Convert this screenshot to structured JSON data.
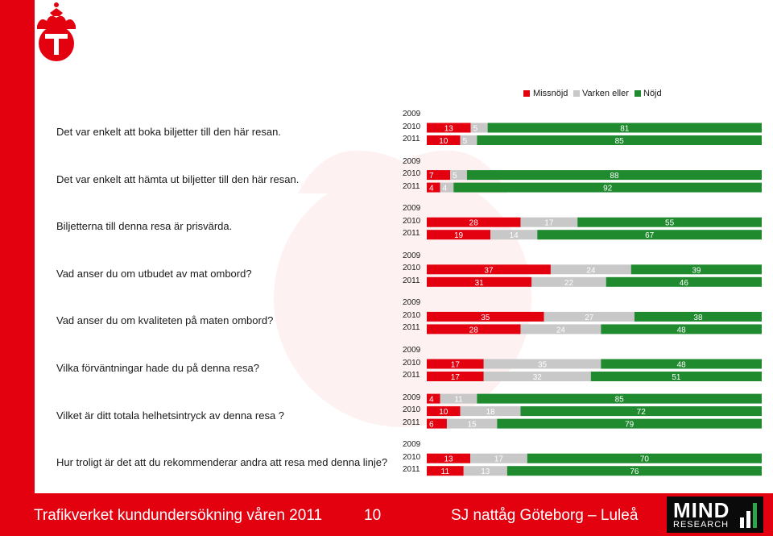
{
  "colors": {
    "brand_red": "#e3000f",
    "missnojd": "#e3000f",
    "varken": "#c8c8c8",
    "nojd": "#1f8a2e",
    "text": "#1a1a1a"
  },
  "icons": {
    "logo": "trafikverket-crown-logo-icon",
    "mind_signal": "signal-bars-icon"
  },
  "footer": {
    "left": "Trafikverket kundundersökning våren 2011",
    "page": "10",
    "right": "SJ nattåg Göteborg – Luleå",
    "logo_line1": "MIND",
    "logo_line2": "RESEARCH"
  },
  "chart_data": {
    "type": "bar",
    "orientation": "horizontal-stacked-percent",
    "legend": {
      "placement": "top-right",
      "entries": [
        "Missnöjd",
        "Varken eller",
        "Nöjd"
      ]
    },
    "questions": [
      {
        "label": "Det var enkelt att boka biljetter till den här resan.",
        "years": [
          {
            "year": "2009",
            "values": null
          },
          {
            "year": "2010",
            "values": [
              13,
              5,
              81
            ]
          },
          {
            "year": "2011",
            "values": [
              10,
              5,
              85
            ]
          }
        ]
      },
      {
        "label": "Det var enkelt att hämta ut biljetter till den här resan.",
        "years": [
          {
            "year": "2009",
            "values": null
          },
          {
            "year": "2010",
            "values": [
              7,
              5,
              88
            ]
          },
          {
            "year": "2011",
            "values": [
              4,
              4,
              92
            ]
          }
        ]
      },
      {
        "label": "Biljetterna till denna resa är prisvärda.",
        "years": [
          {
            "year": "2009",
            "values": null
          },
          {
            "year": "2010",
            "values": [
              28,
              17,
              55
            ]
          },
          {
            "year": "2011",
            "values": [
              19,
              14,
              67
            ]
          }
        ]
      },
      {
        "label": "Vad anser du om utbudet av mat ombord?",
        "years": [
          {
            "year": "2009",
            "values": null
          },
          {
            "year": "2010",
            "values": [
              37,
              24,
              39
            ]
          },
          {
            "year": "2011",
            "values": [
              31,
              22,
              46
            ]
          }
        ]
      },
      {
        "label": "Vad anser du om kvaliteten på maten ombord?",
        "years": [
          {
            "year": "2009",
            "values": null
          },
          {
            "year": "2010",
            "values": [
              35,
              27,
              38
            ]
          },
          {
            "year": "2011",
            "values": [
              28,
              24,
              48
            ]
          }
        ]
      },
      {
        "label": "Vilka förväntningar hade du på denna resa?",
        "years": [
          {
            "year": "2009",
            "values": null
          },
          {
            "year": "2010",
            "values": [
              17,
              35,
              48
            ]
          },
          {
            "year": "2011",
            "values": [
              17,
              32,
              51
            ]
          }
        ]
      },
      {
        "label": "Vilket är ditt totala helhetsintryck av denna resa ?",
        "years": [
          {
            "year": "2009",
            "values": [
              4,
              11,
              85
            ]
          },
          {
            "year": "2010",
            "values": [
              10,
              18,
              72
            ]
          },
          {
            "year": "2011",
            "values": [
              6,
              15,
              79
            ]
          }
        ]
      },
      {
        "label": "Hur troligt är det att du rekommenderar andra att resa med denna linje?",
        "years": [
          {
            "year": "2009",
            "values": null
          },
          {
            "year": "2010",
            "values": [
              13,
              17,
              70
            ]
          },
          {
            "year": "2011",
            "values": [
              11,
              13,
              76
            ]
          }
        ]
      }
    ]
  }
}
